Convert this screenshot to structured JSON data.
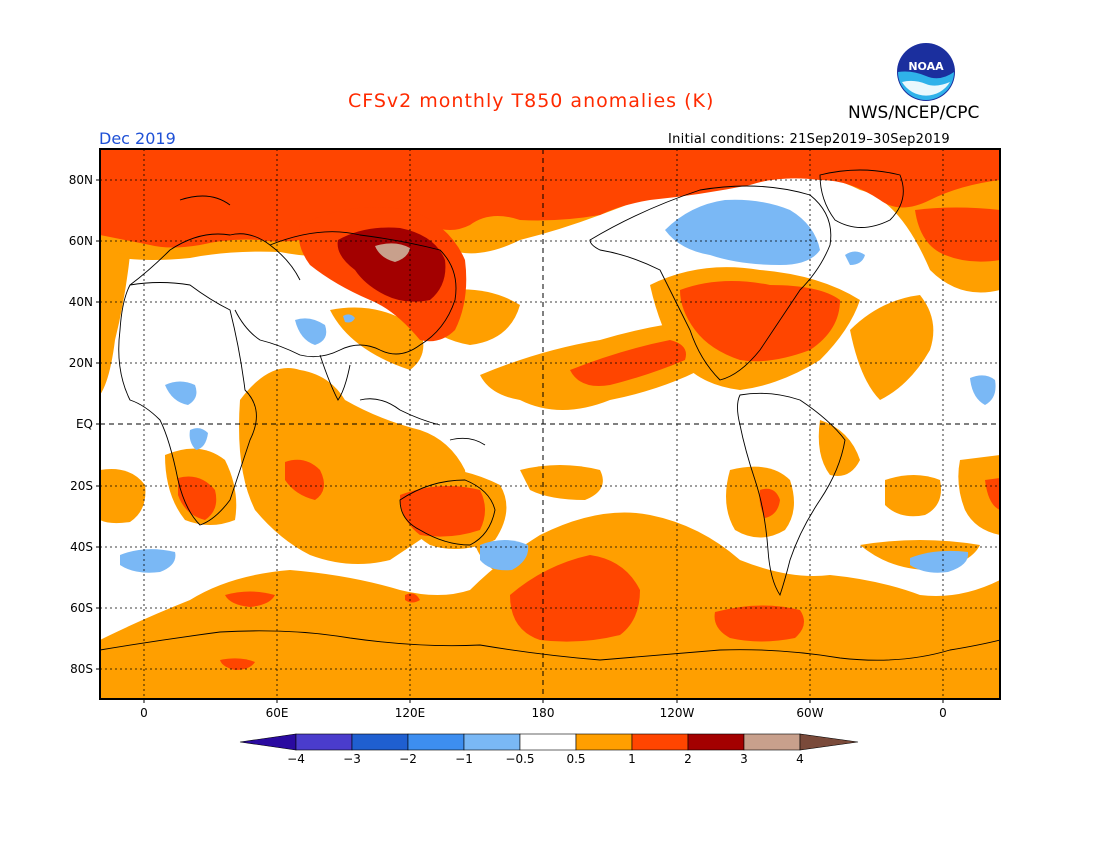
{
  "title": "CFSv2 monthly T850 anomalies (K)",
  "agency": "NWS/NCEP/CPC",
  "logo_text": "NOAA",
  "month": "Dec 2019",
  "initial_conditions": "Initial conditions: 21Sep2019–30Sep2019",
  "colors": {
    "title": "#ff2a00",
    "month": "#1e50d6",
    "n4": "#2a0aa0",
    "n3": "#4a3ccc",
    "n2": "#1f5fd0",
    "n1": "#3d8ef0",
    "n05": "#7ab8f5",
    "neutral": "#ffffff",
    "p05": "#ff9f00",
    "p1": "#ff4500",
    "p2": "#a30000",
    "p3": "#c8a08c",
    "p4": "#7a4a3a"
  },
  "map": {
    "lat_labels": [
      "80N",
      "60N",
      "40N",
      "20N",
      "EQ",
      "20S",
      "40S",
      "60S",
      "80S"
    ],
    "lon_labels": [
      "0",
      "60E",
      "120E",
      "180",
      "120W",
      "60W",
      "0"
    ]
  },
  "colorbar": {
    "labels": [
      "−4",
      "−3",
      "−2",
      "−1",
      "−0.5",
      "0.5",
      "1",
      "2",
      "3",
      "4"
    ]
  }
}
